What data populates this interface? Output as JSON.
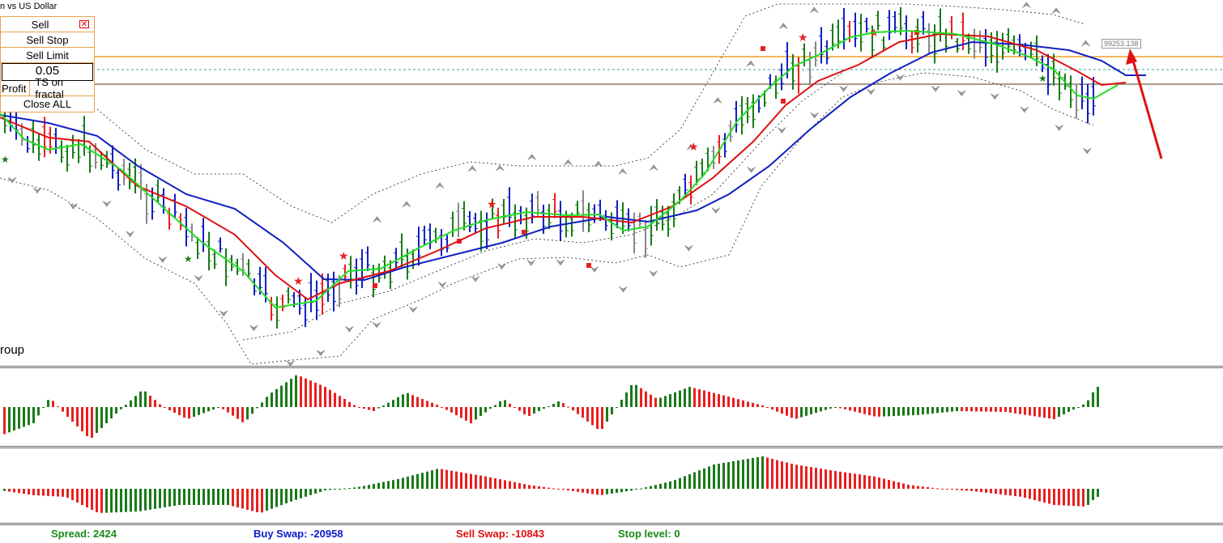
{
  "chart": {
    "title": "n vs US Dollar",
    "group_label": "roup",
    "price_label": "99253.138"
  },
  "trade_panel": {
    "sell_label": "Sell",
    "close_icon": "close-x-icon",
    "sell_stop_label": "Sell Stop",
    "sell_limit_label": "Sell Limit",
    "lot_value": "0.05",
    "profit_label": "Profit",
    "ts_label": "TS on fractal",
    "close_all_label": "Close ALL"
  },
  "status_bar": {
    "spread": "Spread: 2424",
    "buy_swap": "Buy Swap: -20958",
    "sell_swap": "Sell Swap: -10843",
    "stop_level": "Stop level: 0"
  },
  "colors": {
    "bull": "#1a7a1a",
    "bear": "#e82020",
    "blue_ma": "#1020c0",
    "red_ma": "#e01010",
    "green_ma": "#22dd22",
    "orange_line": "#f0a020",
    "spread_color": "#1a8a1a",
    "buy_swap_color": "#0a1acc",
    "sell_swap_color": "#e01010",
    "stop_color": "#1a8a1a"
  }
}
